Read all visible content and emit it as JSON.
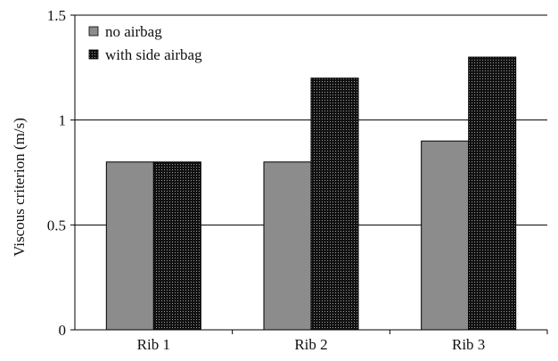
{
  "chart_data": {
    "type": "bar",
    "title": "",
    "xlabel": "",
    "ylabel": "Viscous criterion (m/s)",
    "categories": [
      "Rib 1",
      "Rib 2",
      "Rib 3"
    ],
    "series": [
      {
        "name": "no airbag",
        "values": [
          0.8,
          0.8,
          0.9
        ],
        "color": "#8c8c8c",
        "pattern": "solid"
      },
      {
        "name": "with side airbag",
        "values": [
          0.8,
          1.2,
          1.3
        ],
        "color": "#1a1a1a",
        "pattern": "dotted"
      }
    ],
    "ylim": [
      0,
      1.5
    ],
    "yticks": [
      0,
      0.5,
      1,
      1.5
    ],
    "ytick_labels": [
      "0",
      "0.5",
      "1",
      "1.5"
    ],
    "grid": "horizontal major lines",
    "legend_position": "top-left inside plot"
  }
}
